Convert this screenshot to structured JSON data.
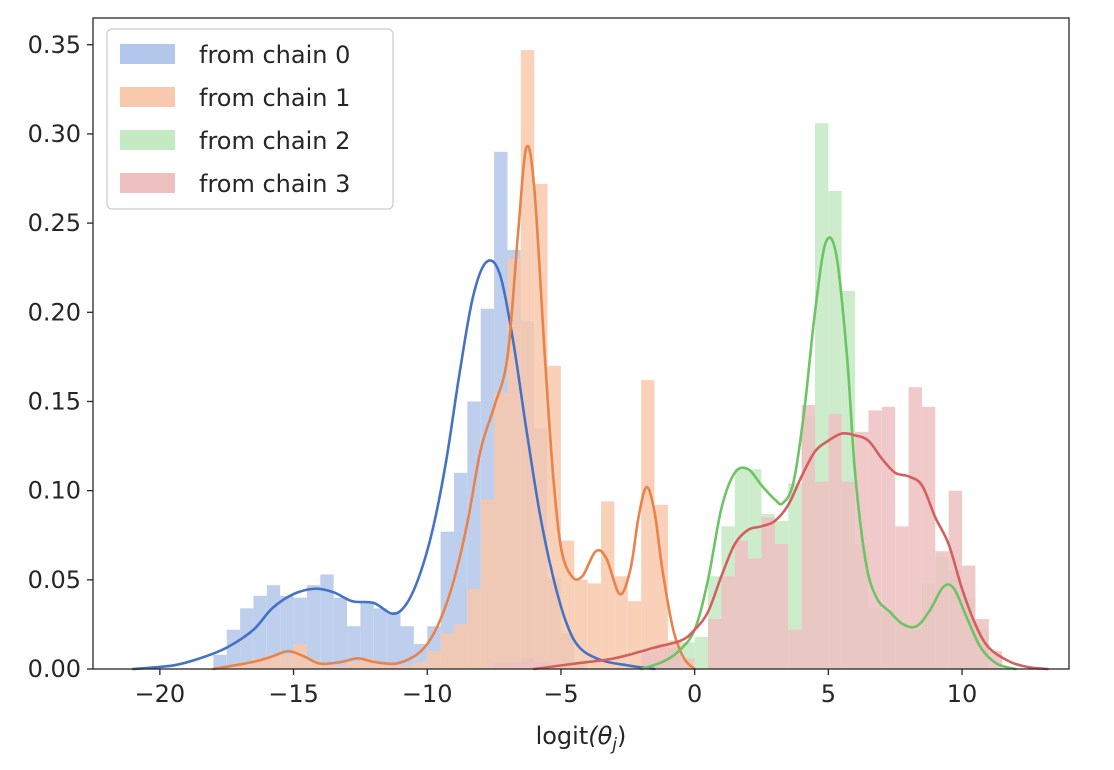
{
  "chart_data": {
    "type": "histogram",
    "xlabel_main": "logit",
    "xlabel_arg": "(θ",
    "xlabel_sub": "j",
    "xlabel_close": ")",
    "ylabel": "",
    "xlim": [
      -22.5,
      14.0
    ],
    "ylim": [
      0,
      0.365
    ],
    "x_ticks": [
      -20,
      -15,
      -10,
      -5,
      0,
      5,
      10
    ],
    "x_tick_labels": [
      "−20",
      "−15",
      "−10",
      "−5",
      "0",
      "5",
      "10"
    ],
    "y_ticks": [
      0.0,
      0.05,
      0.1,
      0.15,
      0.2,
      0.25,
      0.3,
      0.35
    ],
    "y_tick_labels": [
      "0.00",
      "0.05",
      "0.10",
      "0.15",
      "0.20",
      "0.25",
      "0.30",
      "0.35"
    ],
    "legend_position": "top-left",
    "series": [
      {
        "name": "from chain 0",
        "bar_color": "#b3c7ec",
        "line_color": "#4472c4",
        "bins": [
          [
            -18.0,
            0.008
          ],
          [
            -17.5,
            0.022
          ],
          [
            -17.0,
            0.034
          ],
          [
            -16.5,
            0.041
          ],
          [
            -16.0,
            0.047
          ],
          [
            -15.5,
            0.041
          ],
          [
            -15.0,
            0.04
          ],
          [
            -14.5,
            0.047
          ],
          [
            -14.0,
            0.053
          ],
          [
            -13.5,
            0.04
          ],
          [
            -13.0,
            0.024
          ],
          [
            -12.5,
            0.038
          ],
          [
            -12.0,
            0.034
          ],
          [
            -11.5,
            0.032
          ],
          [
            -11.0,
            0.024
          ],
          [
            -10.5,
            0.014
          ],
          [
            -10.0,
            0.024
          ],
          [
            -9.5,
            0.077
          ],
          [
            -9.0,
            0.11
          ],
          [
            -8.5,
            0.15
          ],
          [
            -8.0,
            0.202
          ],
          [
            -7.5,
            0.29
          ],
          [
            -7.0,
            0.235
          ],
          [
            -6.5,
            0.195
          ],
          [
            -6.0,
            0.135
          ],
          [
            -5.5,
            0.051
          ],
          [
            -5.0,
            0.02
          ],
          [
            -4.5,
            0.004
          ]
        ],
        "kde": [
          [
            -21.0,
            0.0
          ],
          [
            -19.5,
            0.002
          ],
          [
            -18.5,
            0.006
          ],
          [
            -17.5,
            0.012
          ],
          [
            -16.5,
            0.022
          ],
          [
            -15.8,
            0.034
          ],
          [
            -15.0,
            0.042
          ],
          [
            -14.2,
            0.045
          ],
          [
            -13.5,
            0.043
          ],
          [
            -12.8,
            0.038
          ],
          [
            -12.0,
            0.037
          ],
          [
            -11.3,
            0.031
          ],
          [
            -10.8,
            0.036
          ],
          [
            -10.3,
            0.052
          ],
          [
            -9.8,
            0.078
          ],
          [
            -9.3,
            0.116
          ],
          [
            -8.8,
            0.165
          ],
          [
            -8.3,
            0.208
          ],
          [
            -7.8,
            0.228
          ],
          [
            -7.3,
            0.222
          ],
          [
            -6.8,
            0.185
          ],
          [
            -6.3,
            0.135
          ],
          [
            -5.8,
            0.088
          ],
          [
            -5.3,
            0.052
          ],
          [
            -4.8,
            0.026
          ],
          [
            -4.3,
            0.012
          ],
          [
            -3.5,
            0.005
          ],
          [
            -2.5,
            0.002
          ],
          [
            -1.5,
            0.0
          ]
        ]
      },
      {
        "name": "from chain 1",
        "bar_color": "#f9c9ad",
        "line_color": "#e8834a",
        "bins": [
          [
            -17.5,
            0.002
          ],
          [
            -17.0,
            0.004
          ],
          [
            -16.5,
            0.006
          ],
          [
            -16.0,
            0.008
          ],
          [
            -15.5,
            0.008
          ],
          [
            -15.0,
            0.014
          ],
          [
            -14.5,
            0.005
          ],
          [
            -14.0,
            0.002
          ],
          [
            -13.5,
            0.002
          ],
          [
            -13.0,
            0.004
          ],
          [
            -12.5,
            0.006
          ],
          [
            -12.0,
            0.004
          ],
          [
            -11.5,
            0.002
          ],
          [
            -11.0,
            0.002
          ],
          [
            -10.5,
            0.004
          ],
          [
            -10.0,
            0.01
          ],
          [
            -9.5,
            0.02
          ],
          [
            -9.0,
            0.025
          ],
          [
            -8.5,
            0.045
          ],
          [
            -8.0,
            0.095
          ],
          [
            -7.5,
            0.155
          ],
          [
            -7.0,
            0.23
          ],
          [
            -6.5,
            0.347
          ],
          [
            -6.0,
            0.272
          ],
          [
            -5.5,
            0.17
          ],
          [
            -5.0,
            0.072
          ],
          [
            -4.5,
            0.05
          ],
          [
            -4.0,
            0.048
          ],
          [
            -3.5,
            0.094
          ],
          [
            -3.0,
            0.052
          ],
          [
            -2.5,
            0.038
          ],
          [
            -2.0,
            0.162
          ],
          [
            -1.5,
            0.092
          ],
          [
            -1.0,
            0.016
          ]
        ],
        "kde": [
          [
            -18.0,
            0.0
          ],
          [
            -16.5,
            0.004
          ],
          [
            -15.8,
            0.007
          ],
          [
            -15.2,
            0.01
          ],
          [
            -14.6,
            0.007
          ],
          [
            -14.0,
            0.003
          ],
          [
            -13.2,
            0.004
          ],
          [
            -12.6,
            0.006
          ],
          [
            -12.0,
            0.004
          ],
          [
            -11.2,
            0.003
          ],
          [
            -10.5,
            0.007
          ],
          [
            -10.0,
            0.014
          ],
          [
            -9.5,
            0.028
          ],
          [
            -9.0,
            0.05
          ],
          [
            -8.5,
            0.082
          ],
          [
            -8.0,
            0.123
          ],
          [
            -7.5,
            0.147
          ],
          [
            -7.0,
            0.175
          ],
          [
            -6.6,
            0.245
          ],
          [
            -6.3,
            0.292
          ],
          [
            -6.0,
            0.27
          ],
          [
            -5.6,
            0.175
          ],
          [
            -5.3,
            0.11
          ],
          [
            -5.0,
            0.068
          ],
          [
            -4.6,
            0.052
          ],
          [
            -4.2,
            0.052
          ],
          [
            -3.7,
            0.066
          ],
          [
            -3.3,
            0.062
          ],
          [
            -2.8,
            0.042
          ],
          [
            -2.4,
            0.056
          ],
          [
            -2.1,
            0.085
          ],
          [
            -1.8,
            0.102
          ],
          [
            -1.5,
            0.088
          ],
          [
            -1.2,
            0.055
          ],
          [
            -0.8,
            0.022
          ],
          [
            -0.4,
            0.006
          ],
          [
            0.0,
            0.0
          ]
        ]
      },
      {
        "name": "from chain 2",
        "bar_color": "#c5e9c2",
        "line_color": "#6cc464",
        "bins": [
          [
            -1.5,
            0.004
          ],
          [
            -1.0,
            0.012
          ],
          [
            -0.5,
            0.015
          ],
          [
            0.0,
            0.018
          ],
          [
            0.5,
            0.052
          ],
          [
            1.0,
            0.08
          ],
          [
            1.5,
            0.112
          ],
          [
            2.0,
            0.112
          ],
          [
            2.5,
            0.087
          ],
          [
            3.0,
            0.083
          ],
          [
            3.5,
            0.104
          ],
          [
            4.0,
            0.142
          ],
          [
            4.5,
            0.306
          ],
          [
            5.0,
            0.268
          ],
          [
            5.5,
            0.212
          ],
          [
            6.0,
            0.07
          ],
          [
            6.5,
            0.034
          ],
          [
            7.0,
            0.033
          ],
          [
            7.5,
            0.026
          ],
          [
            8.0,
            0.022
          ],
          [
            8.5,
            0.048
          ],
          [
            9.0,
            0.063
          ],
          [
            9.5,
            0.055
          ],
          [
            10.0,
            0.04
          ],
          [
            10.5,
            0.022
          ]
        ],
        "kde": [
          [
            -2.0,
            0.0
          ],
          [
            -1.2,
            0.004
          ],
          [
            -0.6,
            0.01
          ],
          [
            0.0,
            0.022
          ],
          [
            0.5,
            0.05
          ],
          [
            1.0,
            0.09
          ],
          [
            1.5,
            0.11
          ],
          [
            2.0,
            0.112
          ],
          [
            2.5,
            0.103
          ],
          [
            3.0,
            0.095
          ],
          [
            3.3,
            0.093
          ],
          [
            3.7,
            0.105
          ],
          [
            4.1,
            0.145
          ],
          [
            4.5,
            0.2
          ],
          [
            4.9,
            0.239
          ],
          [
            5.3,
            0.232
          ],
          [
            5.7,
            0.175
          ],
          [
            6.0,
            0.11
          ],
          [
            6.4,
            0.06
          ],
          [
            6.8,
            0.04
          ],
          [
            7.3,
            0.032
          ],
          [
            7.8,
            0.025
          ],
          [
            8.3,
            0.024
          ],
          [
            8.8,
            0.033
          ],
          [
            9.3,
            0.046
          ],
          [
            9.7,
            0.045
          ],
          [
            10.2,
            0.028
          ],
          [
            10.7,
            0.012
          ],
          [
            11.3,
            0.003
          ],
          [
            12.0,
            0.0
          ]
        ]
      },
      {
        "name": "from chain 3",
        "bar_color": "#eec1c1",
        "line_color": "#d45f5f",
        "bins": [
          [
            -7.5,
            0.004
          ],
          [
            -7.0,
            0.004
          ],
          [
            -6.5,
            0.006
          ],
          [
            -6.0,
            0.004
          ],
          [
            -2.0,
            0.01
          ],
          [
            -1.5,
            0.014
          ],
          [
            -1.0,
            0.012
          ],
          [
            -0.5,
            0.006
          ],
          [
            0.5,
            0.028
          ],
          [
            1.0,
            0.052
          ],
          [
            1.5,
            0.072
          ],
          [
            2.0,
            0.062
          ],
          [
            2.5,
            0.085
          ],
          [
            3.0,
            0.07
          ],
          [
            3.5,
            0.022
          ],
          [
            4.0,
            0.148
          ],
          [
            4.5,
            0.105
          ],
          [
            5.0,
            0.143
          ],
          [
            5.5,
            0.105
          ],
          [
            6.0,
            0.133
          ],
          [
            6.5,
            0.145
          ],
          [
            7.0,
            0.147
          ],
          [
            7.5,
            0.08
          ],
          [
            8.0,
            0.158
          ],
          [
            8.5,
            0.147
          ],
          [
            9.0,
            0.066
          ],
          [
            9.5,
            0.1
          ],
          [
            10.0,
            0.058
          ],
          [
            10.5,
            0.028
          ],
          [
            11.0,
            0.01
          ]
        ],
        "kde": [
          [
            -6.0,
            0.0
          ],
          [
            -4.5,
            0.003
          ],
          [
            -3.0,
            0.006
          ],
          [
            -1.5,
            0.012
          ],
          [
            -0.5,
            0.016
          ],
          [
            0.0,
            0.022
          ],
          [
            0.5,
            0.032
          ],
          [
            1.0,
            0.052
          ],
          [
            1.5,
            0.07
          ],
          [
            2.0,
            0.078
          ],
          [
            2.5,
            0.08
          ],
          [
            3.0,
            0.083
          ],
          [
            3.5,
            0.092
          ],
          [
            4.0,
            0.108
          ],
          [
            4.5,
            0.122
          ],
          [
            5.0,
            0.128
          ],
          [
            5.5,
            0.132
          ],
          [
            6.0,
            0.131
          ],
          [
            6.5,
            0.128
          ],
          [
            7.0,
            0.118
          ],
          [
            7.5,
            0.11
          ],
          [
            8.0,
            0.108
          ],
          [
            8.5,
            0.103
          ],
          [
            9.0,
            0.085
          ],
          [
            9.5,
            0.07
          ],
          [
            10.0,
            0.045
          ],
          [
            10.5,
            0.025
          ],
          [
            11.0,
            0.012
          ],
          [
            11.8,
            0.004
          ],
          [
            12.5,
            0.001
          ],
          [
            13.2,
            0.0
          ]
        ]
      }
    ]
  }
}
